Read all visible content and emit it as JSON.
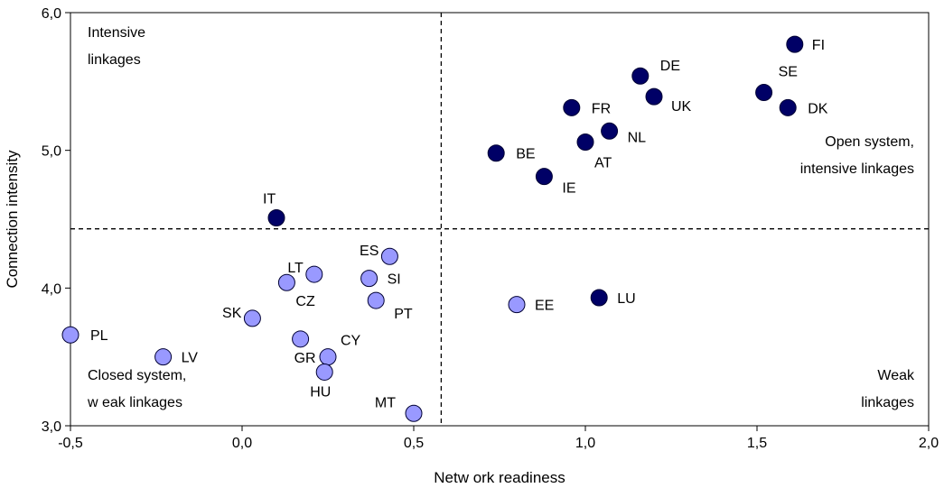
{
  "chart_data": {
    "type": "scatter",
    "title": "",
    "xlabel": "Netw ork readiness",
    "ylabel": "Connection intensity",
    "xlim": [
      -0.5,
      2.0
    ],
    "ylim": [
      3.0,
      6.0
    ],
    "xticks": [
      "-0,5",
      "0,0",
      "0,5",
      "1,0",
      "1,5",
      "2,0"
    ],
    "yticks": [
      "3,0",
      "4,0",
      "5,0",
      "6,0"
    ],
    "grid": false,
    "divider_x": 0.58,
    "divider_y": 4.43,
    "colors": {
      "dark": "#000066",
      "light": "#9999ff"
    },
    "quadrant_labels": {
      "top_left": [
        "Intensive",
        "linkages"
      ],
      "top_right": [
        "Open system,",
        "intensive linkages"
      ],
      "bottom_left": [
        "Closed system,",
        "w eak linkages"
      ],
      "bottom_right": [
        "Weak",
        "linkages"
      ]
    },
    "points": [
      {
        "label": "FI",
        "x": 1.61,
        "y": 5.77,
        "group": "dark"
      },
      {
        "label": "DE",
        "x": 1.16,
        "y": 5.54,
        "group": "dark"
      },
      {
        "label": "SE",
        "x": 1.52,
        "y": 5.42,
        "group": "dark"
      },
      {
        "label": "UK",
        "x": 1.2,
        "y": 5.39,
        "group": "dark"
      },
      {
        "label": "FR",
        "x": 0.96,
        "y": 5.31,
        "group": "dark"
      },
      {
        "label": "DK",
        "x": 1.59,
        "y": 5.31,
        "group": "dark"
      },
      {
        "label": "NL",
        "x": 1.07,
        "y": 5.14,
        "group": "dark"
      },
      {
        "label": "AT",
        "x": 1.0,
        "y": 5.06,
        "group": "dark"
      },
      {
        "label": "BE",
        "x": 0.74,
        "y": 4.98,
        "group": "dark"
      },
      {
        "label": "IE",
        "x": 0.88,
        "y": 4.81,
        "group": "dark"
      },
      {
        "label": "IT",
        "x": 0.1,
        "y": 4.51,
        "group": "dark"
      },
      {
        "label": "LU",
        "x": 1.04,
        "y": 3.93,
        "group": "dark"
      },
      {
        "label": "ES",
        "x": 0.43,
        "y": 4.23,
        "group": "light"
      },
      {
        "label": "LT",
        "x": 0.21,
        "y": 4.1,
        "group": "light"
      },
      {
        "label": "SI",
        "x": 0.37,
        "y": 4.07,
        "group": "light"
      },
      {
        "label": "CZ",
        "x": 0.13,
        "y": 4.04,
        "group": "light"
      },
      {
        "label": "PT",
        "x": 0.39,
        "y": 3.91,
        "group": "light"
      },
      {
        "label": "EE",
        "x": 0.8,
        "y": 3.88,
        "group": "light"
      },
      {
        "label": "SK",
        "x": 0.03,
        "y": 3.78,
        "group": "light"
      },
      {
        "label": "PL",
        "x": -0.5,
        "y": 3.66,
        "group": "light"
      },
      {
        "label": "GR",
        "x": 0.17,
        "y": 3.63,
        "group": "light"
      },
      {
        "label": "LV",
        "x": -0.23,
        "y": 3.5,
        "group": "light"
      },
      {
        "label": "CY",
        "x": 0.25,
        "y": 3.5,
        "group": "light"
      },
      {
        "label": "HU",
        "x": 0.24,
        "y": 3.39,
        "group": "light"
      },
      {
        "label": "MT",
        "x": 0.5,
        "y": 3.09,
        "group": "light"
      }
    ]
  }
}
